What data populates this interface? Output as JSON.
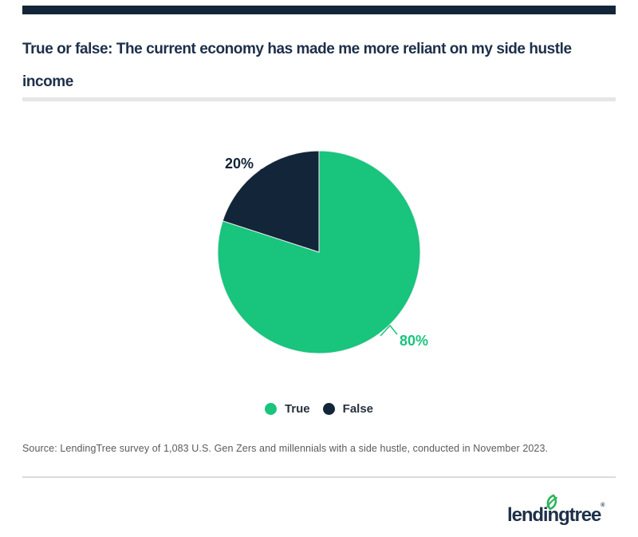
{
  "top_bar": {
    "color": "#132638"
  },
  "header": {
    "title": "True or false: The current economy has made me more reliant on my side hustle income"
  },
  "chart_data": {
    "type": "pie",
    "title": "True or false: The current economy has made me more reliant on my side hustle income",
    "slices": [
      {
        "label": "True",
        "value": 80,
        "display_label": "80%",
        "color": "#19C47D"
      },
      {
        "label": "False",
        "value": 20,
        "display_label": "20%",
        "color": "#132539"
      }
    ],
    "start_angle_deg": -90,
    "direction": "clockwise",
    "legend_position": "bottom",
    "data_labels": {
      "true_pct": "80%",
      "false_pct": "20%"
    }
  },
  "legend": {
    "items": [
      {
        "label": "True",
        "color": "#19C47D"
      },
      {
        "label": "False",
        "color": "#132539"
      }
    ]
  },
  "source": {
    "text": "Source: LendingTree survey of 1,083 U.S. Gen Zers and millennials with a side hustle, conducted in November 2023."
  },
  "footer": {
    "logo_text": "lendingtree",
    "registered_mark": "®",
    "leaf_color": "#2CB45B",
    "text_color": "#1E3049"
  },
  "colors": {
    "title_navy": "#1D2F49",
    "pie_green": "#19C47D",
    "pie_navy": "#132539",
    "source_gray": "#595B5F",
    "divider_gray": "#E6E6E6"
  }
}
